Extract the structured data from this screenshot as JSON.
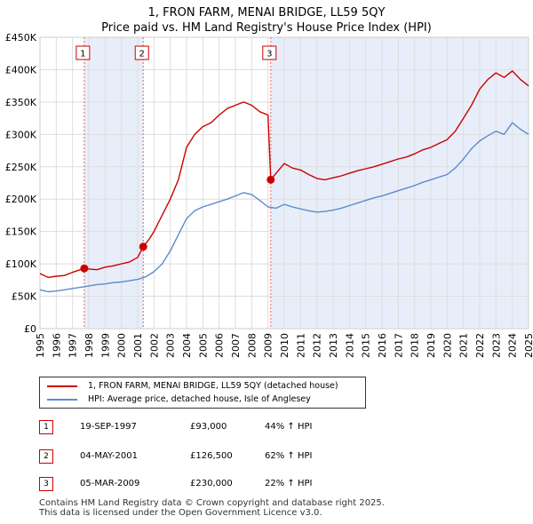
{
  "title": {
    "line1": "1, FRON FARM, MENAI BRIDGE, LL59 5QY",
    "line2": "Price paid vs. HM Land Registry's House Price Index (HPI)"
  },
  "legend": {
    "property_label": "1, FRON FARM, MENAI BRIDGE, LL59 5QY (detached house)",
    "hpi_label": "HPI: Average price, detached house, Isle of Anglesey"
  },
  "colors": {
    "property_line": "#cc0000",
    "hpi_line": "#5b8ccc",
    "shade": "#e8eef9",
    "marker_line": "#e06666",
    "marker_box_border": "#cc0000"
  },
  "sales": [
    {
      "num": "1",
      "date": "19-SEP-1997",
      "price": "£93,000",
      "hpi": "44% ↑ HPI"
    },
    {
      "num": "2",
      "date": "04-MAY-2001",
      "price": "£126,500",
      "hpi": "62% ↑ HPI"
    },
    {
      "num": "3",
      "date": "05-MAR-2009",
      "price": "£230,000",
      "hpi": "22% ↑ HPI"
    }
  ],
  "footer": {
    "line1": "Contains HM Land Registry data © Crown copyright and database right 2025.",
    "line2": "This data is licensed under the Open Government Licence v3.0."
  },
  "chart_data": {
    "type": "line",
    "title": "1, FRON FARM, MENAI BRIDGE, LL59 5QY",
    "subtitle": "Price paid vs. HM Land Registry's House Price Index (HPI)",
    "xlabel": "",
    "ylabel": "",
    "xlim": [
      1995.0,
      2025.0
    ],
    "ylim": [
      0,
      450000
    ],
    "y_ticks": [
      0,
      50000,
      100000,
      150000,
      200000,
      250000,
      300000,
      350000,
      400000,
      450000
    ],
    "y_tick_labels": [
      "£0",
      "£50K",
      "£100K",
      "£150K",
      "£200K",
      "£250K",
      "£300K",
      "£350K",
      "£400K",
      "£450K"
    ],
    "x_ticks": [
      1995,
      1996,
      1997,
      1998,
      1999,
      2000,
      2001,
      2002,
      2003,
      2004,
      2005,
      2006,
      2007,
      2008,
      2009,
      2010,
      2011,
      2012,
      2013,
      2014,
      2015,
      2016,
      2017,
      2018,
      2019,
      2020,
      2021,
      2022,
      2023,
      2024,
      2025
    ],
    "x_tick_labels": [
      "1995",
      "1996",
      "1997",
      "1998",
      "1999",
      "2000",
      "2001",
      "2002",
      "2003",
      "2004",
      "2005",
      "2006",
      "2007",
      "2008",
      "2009",
      "2010",
      "2011",
      "2012",
      "2013",
      "2014",
      "2015",
      "2016",
      "2017",
      "2018",
      "2019",
      "2020",
      "2021",
      "2022",
      "2023",
      "2024",
      "2025"
    ],
    "grid": true,
    "shaded_periods": [
      [
        1997.72,
        2001.34
      ],
      [
        2009.17,
        2025.0
      ]
    ],
    "sale_markers": [
      {
        "label": "1",
        "x": 1997.72,
        "y": 93000
      },
      {
        "label": "2",
        "x": 2001.34,
        "y": 126500
      },
      {
        "label": "3",
        "x": 2009.17,
        "y": 230000
      }
    ],
    "series": [
      {
        "name": "1, FRON FARM, MENAI BRIDGE, LL59 5QY (detached house)",
        "color": "#cc0000",
        "x": [
          1995.0,
          1995.5,
          1996.0,
          1996.5,
          1997.0,
          1997.72,
          1998.0,
          1998.5,
          1999.0,
          1999.5,
          2000.0,
          2000.5,
          2001.0,
          2001.34,
          2001.7,
          2002.0,
          2002.5,
          2003.0,
          2003.5,
          2004.0,
          2004.5,
          2005.0,
          2005.5,
          2006.0,
          2006.5,
          2007.0,
          2007.5,
          2008.0,
          2008.5,
          2009.0,
          2009.17,
          2009.5,
          2010.0,
          2010.5,
          2011.0,
          2011.5,
          2012.0,
          2012.5,
          2013.0,
          2013.5,
          2014.0,
          2014.5,
          2015.0,
          2015.5,
          2016.0,
          2016.5,
          2017.0,
          2017.5,
          2018.0,
          2018.5,
          2019.0,
          2019.5,
          2020.0,
          2020.5,
          2021.0,
          2021.5,
          2022.0,
          2022.5,
          2023.0,
          2023.5,
          2024.0,
          2024.5,
          2025.0
        ],
        "y": [
          85000,
          79000,
          81000,
          82000,
          87000,
          93000,
          92000,
          91000,
          95000,
          97000,
          100000,
          103000,
          110000,
          126500,
          138000,
          150000,
          175000,
          200000,
          230000,
          280000,
          300000,
          312000,
          318000,
          330000,
          340000,
          345000,
          350000,
          345000,
          335000,
          330000,
          230000,
          240000,
          255000,
          248000,
          245000,
          238000,
          232000,
          230000,
          233000,
          236000,
          240000,
          244000,
          247000,
          250000,
          254000,
          258000,
          262000,
          265000,
          270000,
          276000,
          280000,
          286000,
          292000,
          305000,
          325000,
          345000,
          370000,
          385000,
          395000,
          388000,
          398000,
          385000,
          375000
        ]
      },
      {
        "name": "HPI: Average price, detached house, Isle of Anglesey",
        "color": "#5b8ccc",
        "x": [
          1995.0,
          1995.5,
          1996.0,
          1996.5,
          1997.0,
          1997.5,
          1998.0,
          1998.5,
          1999.0,
          1999.5,
          2000.0,
          2000.5,
          2001.0,
          2001.5,
          2002.0,
          2002.5,
          2003.0,
          2003.5,
          2004.0,
          2004.5,
          2005.0,
          2005.5,
          2006.0,
          2006.5,
          2007.0,
          2007.5,
          2008.0,
          2008.5,
          2009.0,
          2009.5,
          2010.0,
          2010.5,
          2011.0,
          2011.5,
          2012.0,
          2012.5,
          2013.0,
          2013.5,
          2014.0,
          2014.5,
          2015.0,
          2015.5,
          2016.0,
          2016.5,
          2017.0,
          2017.5,
          2018.0,
          2018.5,
          2019.0,
          2019.5,
          2020.0,
          2020.5,
          2021.0,
          2021.5,
          2022.0,
          2022.5,
          2023.0,
          2023.5,
          2024.0,
          2024.5,
          2025.0
        ],
        "y": [
          60000,
          57000,
          58000,
          60000,
          62000,
          64000,
          66000,
          68000,
          69000,
          71000,
          72000,
          74000,
          76000,
          80000,
          88000,
          100000,
          120000,
          145000,
          170000,
          182000,
          188000,
          192000,
          196000,
          200000,
          205000,
          210000,
          207000,
          198000,
          188000,
          186000,
          192000,
          188000,
          185000,
          182000,
          180000,
          181000,
          183000,
          186000,
          190000,
          194000,
          198000,
          202000,
          205000,
          209000,
          213000,
          217000,
          221000,
          226000,
          230000,
          234000,
          238000,
          248000,
          262000,
          278000,
          290000,
          298000,
          305000,
          300000,
          318000,
          308000,
          300000
        ]
      }
    ]
  }
}
